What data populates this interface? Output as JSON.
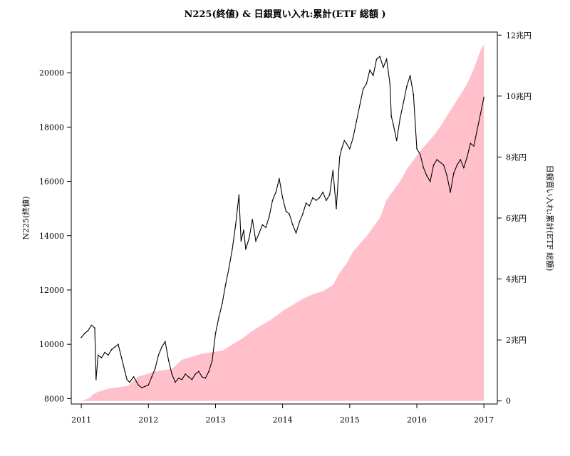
{
  "chart_data": {
    "type": "line",
    "title": "N225(終値) & 日銀買い入れ:累計(ETF 総額 )",
    "ylabel_left": "N225(終値)",
    "ylabel_right": "日銀買い入れ:累計(ETF 総額)",
    "x_ticks": [
      "2011",
      "2012",
      "2013",
      "2014",
      "2015",
      "2016",
      "2017"
    ],
    "xlim": [
      2010.85,
      2017.2
    ],
    "y_left": {
      "lim": [
        7800,
        21500
      ],
      "ticks": [
        "8000",
        "10000",
        "12000",
        "14000",
        "16000",
        "18000",
        "20000"
      ],
      "tick_values": [
        8000,
        10000,
        12000,
        14000,
        16000,
        18000,
        20000
      ]
    },
    "y_right": {
      "lim": [
        -0.1,
        12.1
      ],
      "ticks": [
        "0",
        "2兆円",
        "4兆円",
        "6兆円",
        "8兆円",
        "10兆円",
        "12兆円"
      ],
      "tick_values": [
        0,
        2,
        4,
        6,
        8,
        10,
        12
      ]
    },
    "grid": false,
    "series": [
      {
        "kind": "area",
        "axis": "right",
        "color": "#ffc0cb",
        "x": [
          2010.98,
          2011.05,
          2011.12,
          2011.18,
          2011.25,
          2011.4,
          2011.55,
          2011.7,
          2011.85,
          2012.0,
          2012.1,
          2012.2,
          2012.35,
          2012.5,
          2012.65,
          2012.8,
          2012.95,
          2013.1,
          2013.25,
          2013.4,
          2013.55,
          2013.7,
          2013.85,
          2014.0,
          2014.15,
          2014.3,
          2014.45,
          2014.6,
          2014.75,
          2014.85,
          2014.95,
          2015.05,
          2015.15,
          2015.25,
          2015.35,
          2015.45,
          2015.55,
          2015.65,
          2015.75,
          2015.85,
          2015.95,
          2016.05,
          2016.15,
          2016.25,
          2016.35,
          2016.45,
          2016.55,
          2016.65,
          2016.75,
          2016.85,
          2016.95,
          2017.0
        ],
        "values": [
          0.0,
          0.03,
          0.1,
          0.22,
          0.3,
          0.4,
          0.45,
          0.5,
          0.8,
          0.9,
          0.97,
          1.0,
          1.05,
          1.35,
          1.45,
          1.55,
          1.6,
          1.65,
          1.85,
          2.05,
          2.3,
          2.5,
          2.7,
          2.95,
          3.15,
          3.35,
          3.5,
          3.6,
          3.8,
          4.2,
          4.5,
          4.9,
          5.15,
          5.4,
          5.7,
          6.0,
          6.6,
          6.9,
          7.2,
          7.6,
          7.9,
          8.2,
          8.45,
          8.7,
          9.0,
          9.35,
          9.7,
          10.05,
          10.4,
          10.9,
          11.5,
          11.7
        ]
      },
      {
        "kind": "line",
        "axis": "left",
        "color": "#000000",
        "x": [
          2011.0,
          2011.05,
          2011.1,
          2011.15,
          2011.2,
          2011.22,
          2011.25,
          2011.3,
          2011.35,
          2011.4,
          2011.45,
          2011.5,
          2011.55,
          2011.6,
          2011.65,
          2011.68,
          2011.72,
          2011.78,
          2011.85,
          2011.9,
          2011.95,
          2012.0,
          2012.05,
          2012.1,
          2012.15,
          2012.2,
          2012.25,
          2012.3,
          2012.35,
          2012.4,
          2012.45,
          2012.5,
          2012.55,
          2012.6,
          2012.65,
          2012.7,
          2012.75,
          2012.8,
          2012.85,
          2012.9,
          2012.95,
          2013.0,
          2013.05,
          2013.1,
          2013.15,
          2013.2,
          2013.25,
          2013.3,
          2013.35,
          2013.38,
          2013.42,
          2013.45,
          2013.5,
          2013.55,
          2013.6,
          2013.65,
          2013.7,
          2013.75,
          2013.8,
          2013.85,
          2013.9,
          2013.95,
          2014.0,
          2014.05,
          2014.1,
          2014.15,
          2014.2,
          2014.25,
          2014.3,
          2014.35,
          2014.4,
          2014.45,
          2014.5,
          2014.55,
          2014.6,
          2014.65,
          2014.7,
          2014.75,
          2014.8,
          2014.85,
          2014.88,
          2014.92,
          2014.95,
          2015.0,
          2015.05,
          2015.1,
          2015.15,
          2015.2,
          2015.25,
          2015.3,
          2015.35,
          2015.4,
          2015.45,
          2015.5,
          2015.55,
          2015.6,
          2015.62,
          2015.65,
          2015.7,
          2015.75,
          2015.8,
          2015.85,
          2015.9,
          2015.95,
          2016.0,
          2016.05,
          2016.1,
          2016.15,
          2016.2,
          2016.25,
          2016.3,
          2016.35,
          2016.4,
          2016.45,
          2016.5,
          2016.55,
          2016.6,
          2016.65,
          2016.7,
          2016.75,
          2016.8,
          2016.85,
          2016.9,
          2016.95,
          2017.0
        ],
        "values": [
          10250,
          10400,
          10500,
          10700,
          10600,
          8700,
          9600,
          9500,
          9700,
          9600,
          9800,
          9900,
          10000,
          9500,
          9000,
          8700,
          8600,
          8800,
          8500,
          8400,
          8450,
          8500,
          8800,
          9100,
          9600,
          9900,
          10100,
          9400,
          8900,
          8600,
          8750,
          8700,
          8900,
          8800,
          8700,
          8900,
          9000,
          8800,
          8750,
          9000,
          9400,
          10400,
          11000,
          11500,
          12200,
          12800,
          13500,
          14400,
          15500,
          13800,
          14200,
          13500,
          13900,
          14600,
          13800,
          14100,
          14400,
          14300,
          14700,
          15300,
          15600,
          16100,
          15400,
          14900,
          14800,
          14400,
          14100,
          14500,
          14800,
          15200,
          15100,
          15400,
          15300,
          15400,
          15600,
          15300,
          15500,
          16400,
          15000,
          16900,
          17200,
          17500,
          17400,
          17200,
          17600,
          18200,
          18800,
          19400,
          19600,
          20100,
          19900,
          20500,
          20600,
          20200,
          20500,
          19600,
          18400,
          18100,
          17500,
          18300,
          18900,
          19500,
          19900,
          19200,
          17200,
          17000,
          16500,
          16200,
          16000,
          16600,
          16800,
          16700,
          16600,
          16200,
          15600,
          16300,
          16600,
          16800,
          16500,
          16900,
          17400,
          17300,
          17900,
          18500,
          19100
        ]
      }
    ]
  }
}
